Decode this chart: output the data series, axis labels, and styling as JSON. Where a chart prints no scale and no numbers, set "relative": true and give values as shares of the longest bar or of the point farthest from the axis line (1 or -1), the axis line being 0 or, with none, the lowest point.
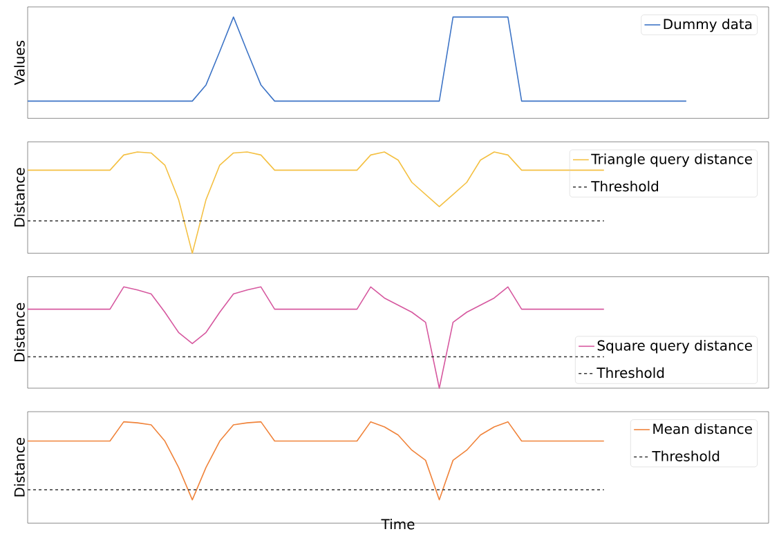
{
  "chart_data": [
    {
      "type": "line",
      "relative": true,
      "ylabel": "Values",
      "legend": "top right",
      "categories": [
        null,
        null,
        null,
        null,
        null,
        null,
        null,
        null,
        null,
        null,
        null,
        null,
        null,
        null,
        null,
        null,
        null,
        null,
        null,
        null,
        null,
        null,
        null,
        null,
        null,
        null,
        null,
        null,
        null,
        null,
        null,
        null,
        null,
        null,
        null,
        null,
        null,
        null,
        null,
        null,
        null,
        null,
        null,
        null,
        null,
        null,
        null,
        null,
        null,
        null,
        null,
        null,
        null,
        null,
        null
      ],
      "series": [
        {
          "name": "Dummy data",
          "color": "#3d74c6",
          "values": [
            0.17,
            0.17,
            0.17,
            0.17,
            0.17,
            0.17,
            0.17,
            0.17,
            0.17,
            0.17,
            0.17,
            0.17,
            0.17,
            0.33,
            0.66,
            1,
            0.66,
            0.33,
            0.17,
            0.17,
            0.17,
            0.17,
            0.17,
            0.17,
            0.17,
            0.17,
            0.17,
            0.17,
            0.17,
            0.17,
            0.17,
            1,
            1,
            1,
            1,
            1,
            0.17,
            0.17,
            0.17,
            0.17,
            0.17,
            0.17,
            0.17,
            0.17,
            0.17,
            0.17,
            0.17,
            0.17,
            0.17,
            null,
            null,
            null,
            null,
            null,
            null
          ]
        }
      ]
    },
    {
      "type": "line",
      "relative": true,
      "ylabel": "Distance",
      "legend": "top right",
      "categories": [
        null,
        null,
        null,
        null,
        null,
        null,
        null,
        null,
        null,
        null,
        null,
        null,
        null,
        null,
        null,
        null,
        null,
        null,
        null,
        null,
        null,
        null,
        null,
        null,
        null,
        null,
        null,
        null,
        null,
        null,
        null,
        null,
        null,
        null,
        null,
        null,
        null,
        null,
        null,
        null,
        null,
        null,
        null,
        null,
        null,
        null,
        null,
        null,
        null,
        null,
        null,
        null,
        null,
        null,
        null
      ],
      "series": [
        {
          "name": "Triangle query distance",
          "color": "#f4c042",
          "values": [
            0.82,
            0.82,
            0.82,
            0.82,
            0.82,
            0.82,
            0.82,
            0.97,
            1,
            0.99,
            0.87,
            0.53,
            0,
            0.53,
            0.87,
            0.99,
            1,
            0.97,
            0.82,
            0.82,
            0.82,
            0.82,
            0.82,
            0.82,
            0.82,
            0.97,
            1,
            0.92,
            0.7,
            0.58,
            0.46,
            0.58,
            0.7,
            0.92,
            1,
            0.97,
            0.82,
            0.82,
            0.82,
            0.82,
            0.82,
            0.82,
            0.82,
            null,
            null,
            null,
            null,
            null,
            null,
            null,
            null,
            null,
            null,
            null,
            null
          ]
        }
      ],
      "ref_lines": [
        {
          "axis": "y",
          "value": 0.32,
          "label": "Threshold",
          "color": "#333333",
          "line_style": "dashed"
        }
      ]
    },
    {
      "type": "line",
      "relative": true,
      "ylabel": "Distance",
      "legend": "bottom right",
      "categories": [
        null,
        null,
        null,
        null,
        null,
        null,
        null,
        null,
        null,
        null,
        null,
        null,
        null,
        null,
        null,
        null,
        null,
        null,
        null,
        null,
        null,
        null,
        null,
        null,
        null,
        null,
        null,
        null,
        null,
        null,
        null,
        null,
        null,
        null,
        null,
        null,
        null,
        null,
        null,
        null,
        null,
        null,
        null,
        null,
        null,
        null,
        null,
        null,
        null,
        null,
        null,
        null,
        null,
        null,
        null
      ],
      "series": [
        {
          "name": "Square query distance",
          "color": "#d6589f",
          "values": [
            0.78,
            0.78,
            0.78,
            0.78,
            0.78,
            0.78,
            0.78,
            1,
            0.97,
            0.93,
            0.75,
            0.55,
            0.44,
            0.55,
            0.75,
            0.93,
            0.97,
            1,
            0.78,
            0.78,
            0.78,
            0.78,
            0.78,
            0.78,
            0.78,
            1,
            0.89,
            0.82,
            0.75,
            0.65,
            0,
            0.65,
            0.75,
            0.82,
            0.89,
            1,
            0.78,
            0.78,
            0.78,
            0.78,
            0.78,
            0.78,
            0.78,
            null,
            null,
            null,
            null,
            null,
            null,
            null,
            null,
            null,
            null,
            null,
            null
          ]
        }
      ],
      "ref_lines": [
        {
          "axis": "y",
          "value": 0.31,
          "label": "Threshold",
          "color": "#333333",
          "line_style": "dashed"
        }
      ]
    },
    {
      "type": "line",
      "relative": true,
      "ylabel": "Distance",
      "xlabel": "Time",
      "legend": "top right",
      "categories": [
        null,
        null,
        null,
        null,
        null,
        null,
        null,
        null,
        null,
        null,
        null,
        null,
        null,
        null,
        null,
        null,
        null,
        null,
        null,
        null,
        null,
        null,
        null,
        null,
        null,
        null,
        null,
        null,
        null,
        null,
        null,
        null,
        null,
        null,
        null,
        null,
        null,
        null,
        null,
        null,
        null,
        null,
        null,
        null,
        null,
        null,
        null,
        null,
        null,
        null,
        null,
        null,
        null,
        null,
        null
      ],
      "series": [
        {
          "name": "Mean distance",
          "color": "#f0833a",
          "values": [
            0.81,
            0.81,
            0.81,
            0.81,
            0.81,
            0.81,
            0.81,
            1,
            0.99,
            0.97,
            0.81,
            0.55,
            0.23,
            0.55,
            0.81,
            0.97,
            0.99,
            1,
            0.81,
            0.81,
            0.81,
            0.81,
            0.81,
            0.81,
            0.81,
            1,
            0.95,
            0.87,
            0.72,
            0.62,
            0.23,
            0.62,
            0.72,
            0.87,
            0.95,
            1,
            0.81,
            0.81,
            0.81,
            0.81,
            0.81,
            0.81,
            0.81,
            null,
            null,
            null,
            null,
            null,
            null,
            null,
            null,
            null,
            null,
            null,
            null
          ]
        }
      ],
      "ref_lines": [
        {
          "axis": "y",
          "value": 0.33,
          "label": "Threshold",
          "color": "#333333",
          "line_style": "dashed"
        }
      ]
    }
  ]
}
